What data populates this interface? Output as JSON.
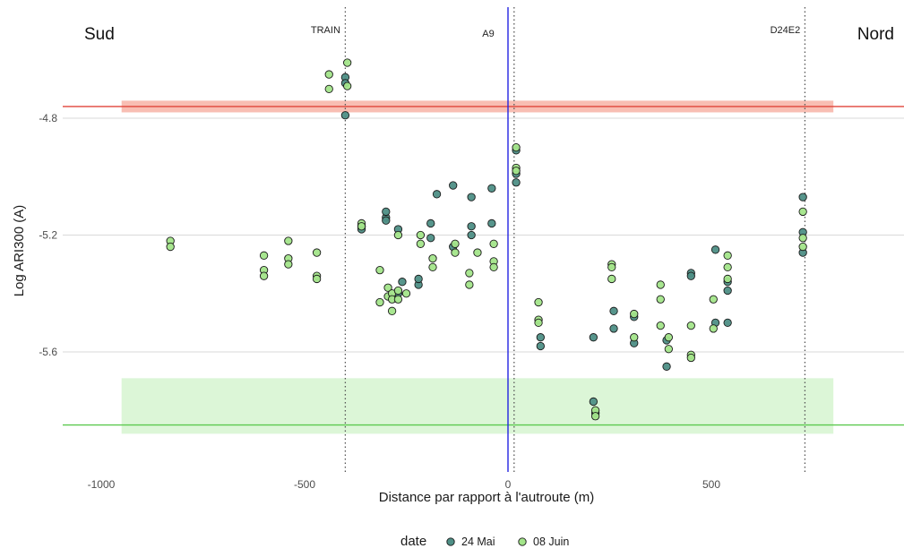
{
  "chart_data": {
    "type": "scatter",
    "xlabel": "Distance par rapport à l'autroute (m)",
    "ylabel": "Log ARI300 (A)",
    "xlim": [
      -1000,
      850
    ],
    "ylim": [
      -5.85,
      -4.62
    ],
    "x_ticks": [
      -1000,
      -500,
      0,
      500
    ],
    "x_tick_labels": [
      "-1000",
      "-500",
      "0",
      "500"
    ],
    "y_ticks": [
      -4.8,
      -5.2,
      -5.6
    ],
    "y_tick_labels": [
      "-4.8",
      "-5.2",
      "-5.6"
    ],
    "grid": true,
    "legend_position": "bottom",
    "legend_title": "date",
    "corner_labels": {
      "left": "Sud",
      "right": "Nord"
    },
    "vlines": [
      {
        "x": -400,
        "label": "TRAIN",
        "style": "dotted",
        "color": "#555555"
      },
      {
        "x": 0,
        "label": "A9",
        "style": "solid",
        "color": "#2424e0"
      },
      {
        "x": 15,
        "label": "",
        "style": "dotted",
        "color": "#555555"
      },
      {
        "x": 730,
        "label": "D24E2",
        "style": "dotted",
        "color": "#555555"
      }
    ],
    "hlines": [
      {
        "y": -4.76,
        "color": "#e0453a"
      },
      {
        "y": -5.85,
        "color": "#5cc94f"
      }
    ],
    "bands": [
      {
        "x_range": [
          -950,
          800
        ],
        "y_range": [
          -4.74,
          -4.78
        ],
        "color": "#f7b3a6"
      },
      {
        "x_range": [
          -950,
          800
        ],
        "y_range": [
          -5.69,
          -5.88
        ],
        "color": "#d6f5d0"
      }
    ],
    "series": [
      {
        "name": "24 Mai",
        "color": "#4e8f86",
        "points": [
          [
            -400,
            -4.66
          ],
          [
            -400,
            -4.68
          ],
          [
            -400,
            -4.79
          ],
          [
            -360,
            -5.17
          ],
          [
            -360,
            -5.18
          ],
          [
            -300,
            -5.14
          ],
          [
            -300,
            -5.15
          ],
          [
            -300,
            -5.12
          ],
          [
            -270,
            -5.18
          ],
          [
            -270,
            -5.4
          ],
          [
            -260,
            -5.36
          ],
          [
            -220,
            -5.37
          ],
          [
            -220,
            -5.35
          ],
          [
            -190,
            -5.21
          ],
          [
            -190,
            -5.16
          ],
          [
            -175,
            -5.06
          ],
          [
            -135,
            -5.24
          ],
          [
            -135,
            -5.03
          ],
          [
            -90,
            -5.2
          ],
          [
            -90,
            -5.17
          ],
          [
            -90,
            -5.07
          ],
          [
            -40,
            -5.16
          ],
          [
            -40,
            -5.04
          ],
          [
            20,
            -4.91
          ],
          [
            20,
            -4.99
          ],
          [
            20,
            -5.02
          ],
          [
            80,
            -5.55
          ],
          [
            80,
            -5.58
          ],
          [
            210,
            -5.55
          ],
          [
            210,
            -5.77
          ],
          [
            215,
            -5.81
          ],
          [
            260,
            -5.46
          ],
          [
            260,
            -5.52
          ],
          [
            310,
            -5.48
          ],
          [
            310,
            -5.57
          ],
          [
            390,
            -5.56
          ],
          [
            390,
            -5.65
          ],
          [
            450,
            -5.33
          ],
          [
            450,
            -5.34
          ],
          [
            510,
            -5.25
          ],
          [
            510,
            -5.5
          ],
          [
            540,
            -5.36
          ],
          [
            540,
            -5.39
          ],
          [
            540,
            -5.5
          ],
          [
            725,
            -5.07
          ],
          [
            725,
            -5.19
          ],
          [
            725,
            -5.26
          ]
        ]
      },
      {
        "name": "08 Juin",
        "color": "#a3e58a",
        "points": [
          [
            -830,
            -5.22
          ],
          [
            -830,
            -5.24
          ],
          [
            -600,
            -5.27
          ],
          [
            -600,
            -5.32
          ],
          [
            -600,
            -5.34
          ],
          [
            -540,
            -5.22
          ],
          [
            -540,
            -5.28
          ],
          [
            -540,
            -5.3
          ],
          [
            -470,
            -5.26
          ],
          [
            -470,
            -5.34
          ],
          [
            -470,
            -5.35
          ],
          [
            -440,
            -4.65
          ],
          [
            -440,
            -4.7
          ],
          [
            -395,
            -4.61
          ],
          [
            -395,
            -4.69
          ],
          [
            -360,
            -5.16
          ],
          [
            -360,
            -5.17
          ],
          [
            -315,
            -5.32
          ],
          [
            -315,
            -5.43
          ],
          [
            -295,
            -5.38
          ],
          [
            -295,
            -5.41
          ],
          [
            -285,
            -5.4
          ],
          [
            -285,
            -5.42
          ],
          [
            -285,
            -5.46
          ],
          [
            -270,
            -5.2
          ],
          [
            -270,
            -5.39
          ],
          [
            -270,
            -5.42
          ],
          [
            -250,
            -5.4
          ],
          [
            -215,
            -5.2
          ],
          [
            -215,
            -5.23
          ],
          [
            -185,
            -5.28
          ],
          [
            -185,
            -5.31
          ],
          [
            -130,
            -5.23
          ],
          [
            -130,
            -5.26
          ],
          [
            -95,
            -5.37
          ],
          [
            -95,
            -5.33
          ],
          [
            -75,
            -5.26
          ],
          [
            -35,
            -5.23
          ],
          [
            -35,
            -5.29
          ],
          [
            -35,
            -5.31
          ],
          [
            20,
            -4.9
          ],
          [
            20,
            -4.97
          ],
          [
            20,
            -4.98
          ],
          [
            75,
            -5.43
          ],
          [
            75,
            -5.49
          ],
          [
            75,
            -5.5
          ],
          [
            215,
            -5.8
          ],
          [
            215,
            -5.82
          ],
          [
            255,
            -5.3
          ],
          [
            255,
            -5.31
          ],
          [
            255,
            -5.35
          ],
          [
            310,
            -5.47
          ],
          [
            310,
            -5.55
          ],
          [
            375,
            -5.37
          ],
          [
            375,
            -5.42
          ],
          [
            375,
            -5.51
          ],
          [
            395,
            -5.55
          ],
          [
            395,
            -5.59
          ],
          [
            450,
            -5.51
          ],
          [
            450,
            -5.61
          ],
          [
            450,
            -5.62
          ],
          [
            505,
            -5.42
          ],
          [
            505,
            -5.52
          ],
          [
            540,
            -5.27
          ],
          [
            540,
            -5.31
          ],
          [
            540,
            -5.35
          ],
          [
            725,
            -5.12
          ],
          [
            725,
            -5.21
          ],
          [
            725,
            -5.24
          ]
        ]
      }
    ]
  }
}
